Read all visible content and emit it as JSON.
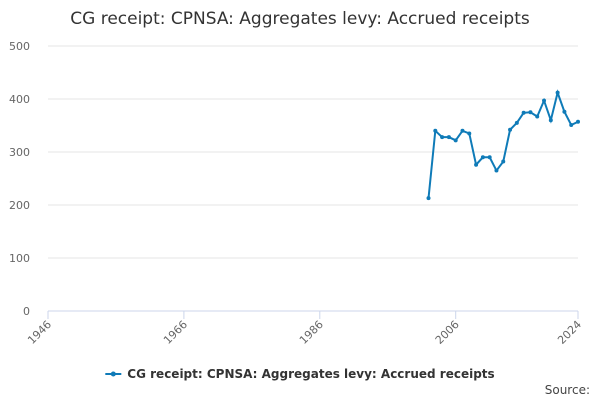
{
  "chart_data": {
    "type": "line",
    "title": "CG receipt: CPNSA: Aggregates levy: Accrued receipts",
    "source": "Source:",
    "x": [
      2002,
      2003,
      2004,
      2005,
      2006,
      2007,
      2008,
      2009,
      2010,
      2011,
      2012,
      2013,
      2014,
      2015,
      2016,
      2017,
      2018,
      2019,
      2020,
      2021,
      2022,
      2023,
      2024
    ],
    "series": [
      {
        "name": "CG receipt: CPNSA: Aggregates levy: Accrued receipts",
        "color": "#0f7bb8",
        "values": [
          213,
          340,
          328,
          328,
          322,
          340,
          335,
          276,
          290,
          290,
          265,
          282,
          342,
          355,
          374,
          375,
          367,
          397,
          360,
          412,
          376,
          351,
          357
        ]
      }
    ],
    "xlim": [
      1946,
      2024
    ],
    "xticks": [
      1946,
      1966,
      1986,
      2006,
      2024
    ],
    "ylim": [
      0,
      500
    ],
    "yticks": [
      0,
      100,
      200,
      300,
      400,
      500
    ],
    "grid": true,
    "legend": "bottom"
  }
}
